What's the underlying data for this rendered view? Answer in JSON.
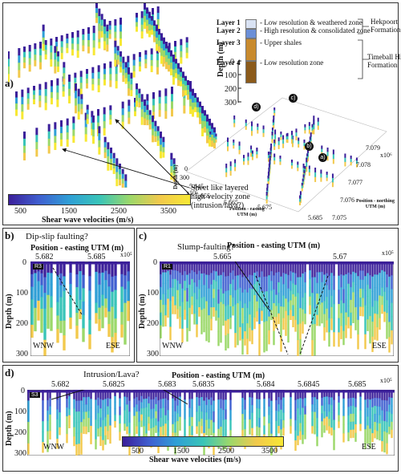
{
  "panel_a": {
    "label": "a)",
    "depth_label": "Depth (m)",
    "depth_ticks": [
      "0",
      "100",
      "200",
      "300"
    ],
    "layers": [
      {
        "name": "Layer 1",
        "desc": "- Low resolution & weathered zone",
        "color": "#d9e2f3"
      },
      {
        "name": "Layer 2",
        "desc": "- High resolution & consolidated zone",
        "color": "#6b8fd8"
      },
      {
        "name": "Layer 3",
        "desc": "- Upper shales",
        "color": "#c88a2e"
      },
      {
        "name": "Layer 4",
        "desc": "- Low resolution zone",
        "color": "#8b5a1a"
      }
    ],
    "formation_top": "Hekpoort\nFormation",
    "formation_bottom": "Timeball Hill\nFormation",
    "annotation": "Sheet like layered\nhigh velocity zone\n(intrusion/lava?)",
    "colorbar_ticks": [
      "500",
      "1500",
      "2500",
      "3500"
    ],
    "colorbar_label": "Shear wave velocities (m/s)",
    "map3d": {
      "xlabel": "Position - easting\nUTM (m)",
      "ylabel": "Position - northing\nUTM (m)",
      "zlabel": "Depth (m)",
      "x_ticks": [
        "5.645",
        "5.655",
        "5.665",
        "5.675",
        "5.685"
      ],
      "x_exp": "x10⁵",
      "y_ticks": [
        "7.075",
        "7.076",
        "7.077",
        "7.078",
        "7.079"
      ],
      "y_exp": "x10⁶",
      "z_ticks": [
        "0",
        "300"
      ],
      "markers": [
        "d)",
        "c)",
        "b)",
        "a)"
      ]
    }
  },
  "panel_b": {
    "label": "b)",
    "title": "Position - easting UTM (m)",
    "annotation": "Dip-slip faulting?",
    "tag": "R3",
    "x_ticks": [
      "5.682",
      "5.685"
    ],
    "x_exp": "x10⁵",
    "depth_label": "Depth (m)",
    "depth_ticks": [
      "0",
      "100",
      "200",
      "300"
    ],
    "left_dir": "WNW",
    "right_dir": "ESE"
  },
  "panel_c": {
    "label": "c)",
    "title": "Position - easting UTM (m)",
    "annotation": "Slump-faulting?",
    "tag": "R1",
    "x_ticks": [
      "5.665",
      "5.67"
    ],
    "x_exp": "x10⁵",
    "depth_label": "Depth (m)",
    "depth_ticks": [
      "0",
      "100",
      "200",
      "300"
    ],
    "left_dir": "WNW",
    "right_dir": "ESE"
  },
  "panel_d": {
    "label": "d)",
    "title": "Position - easting UTM (m)",
    "annotation": "Intrusion/Lava?",
    "tag": "S3",
    "x_ticks": [
      "5.682",
      "5.6825",
      "5.683",
      "5.6835",
      "5.684",
      "5.6845",
      "5.685"
    ],
    "x_exp": "x10⁵",
    "depth_label": "Depth (m)",
    "depth_ticks": [
      "0",
      "100",
      "200",
      "300"
    ],
    "left_dir": "WNW",
    "right_dir": "ESE",
    "colorbar_ticks": [
      "500",
      "1500",
      "2500",
      "3500"
    ],
    "colorbar_label": "Shear wave velocities (m/s)"
  },
  "colors": {
    "ramp": [
      "#3b1f9a",
      "#3f5fd0",
      "#2f9fd6",
      "#39c4b8",
      "#9bd86a",
      "#f2c94c",
      "#f7e834"
    ]
  }
}
